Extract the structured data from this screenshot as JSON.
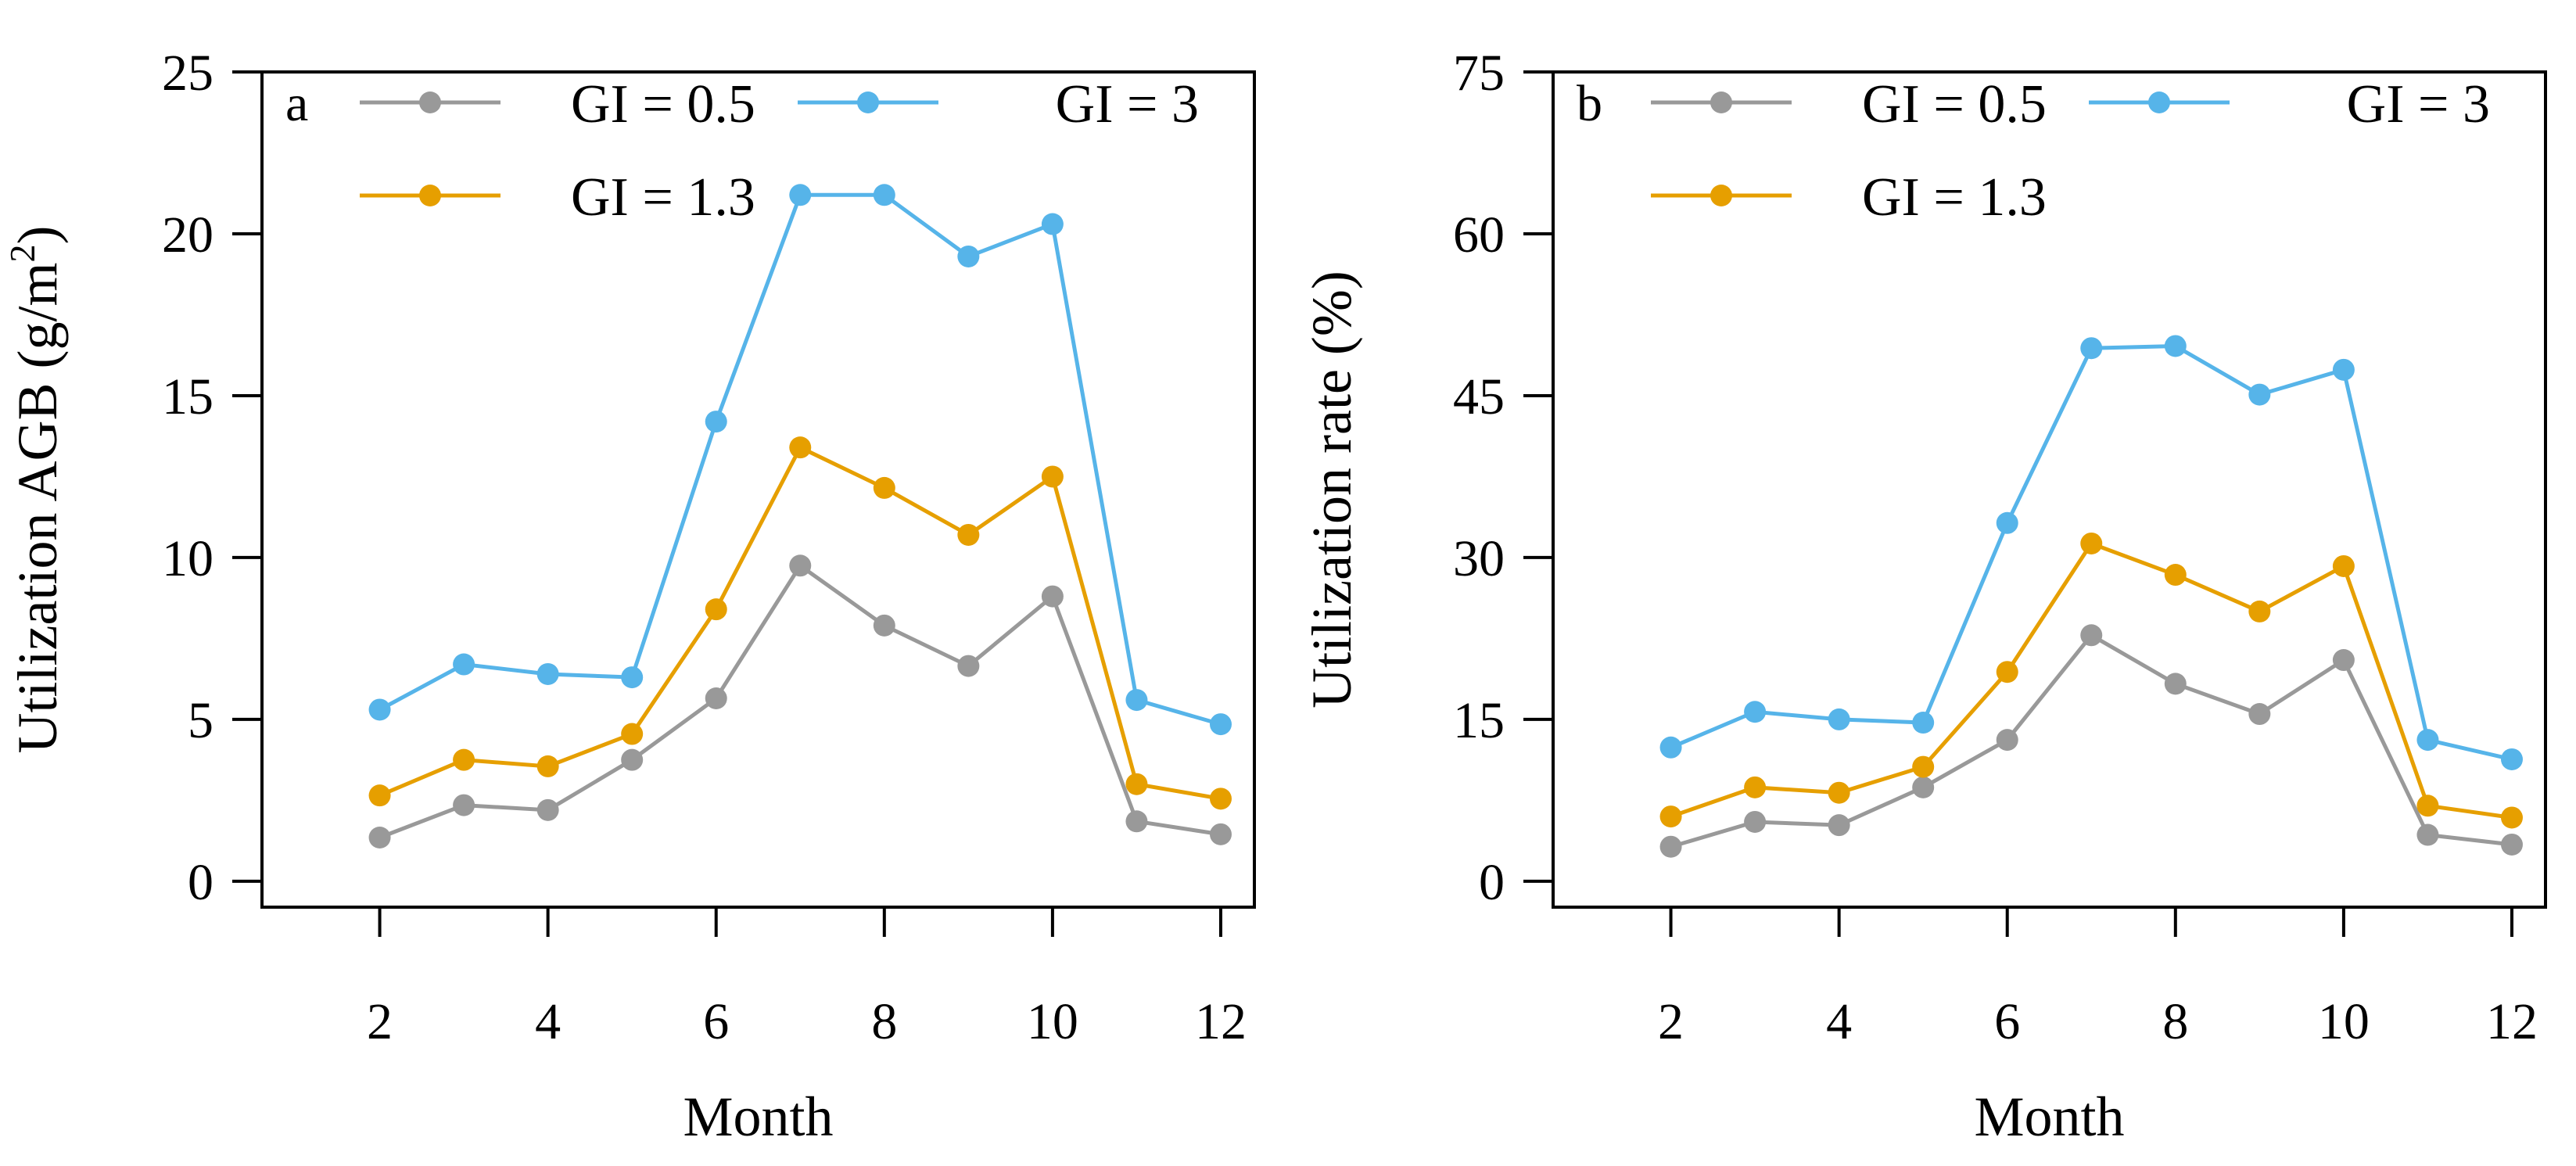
{
  "chart_data": [
    {
      "type": "line",
      "panel_label": "a",
      "xlabel": "Month",
      "ylabel_main": "Utilization AGB (g/m",
      "ylabel_sup": "2",
      "ylabel_close": ")",
      "x": [
        2,
        3,
        4,
        5,
        6,
        7,
        8,
        9,
        10,
        11,
        12
      ],
      "xlim": [
        0.6,
        12.4
      ],
      "ylim": [
        -0.8,
        25
      ],
      "xticks": [
        2,
        4,
        6,
        8,
        10,
        12
      ],
      "yticks": [
        0,
        5,
        10,
        15,
        20,
        25
      ],
      "grid": false,
      "legend_position": "top-left",
      "series": [
        {
          "name": "GI = 0.5",
          "color": "#999999",
          "values": [
            1.35,
            2.35,
            2.2,
            3.75,
            5.65,
            9.75,
            7.9,
            6.65,
            8.8,
            1.85,
            1.45
          ]
        },
        {
          "name": "GI = 1.3",
          "color": "#E69F00",
          "values": [
            2.65,
            3.75,
            3.55,
            4.55,
            8.4,
            13.4,
            12.15,
            10.7,
            12.5,
            3.0,
            2.55
          ]
        },
        {
          "name": "GI = 3",
          "color": "#56B4E9",
          "values": [
            5.3,
            6.7,
            6.4,
            6.3,
            14.2,
            21.2,
            21.2,
            19.3,
            20.3,
            5.6,
            4.85
          ]
        }
      ]
    },
    {
      "type": "line",
      "panel_label": "b",
      "xlabel": "Month",
      "ylabel_main": "Utilization rate (%)",
      "ylabel_sup": "",
      "ylabel_close": "",
      "x": [
        2,
        3,
        4,
        5,
        6,
        7,
        8,
        9,
        10,
        11,
        12
      ],
      "xlim": [
        0.6,
        12.4
      ],
      "ylim": [
        -2.4,
        75
      ],
      "xticks": [
        2,
        4,
        6,
        8,
        10,
        12
      ],
      "yticks": [
        0,
        15,
        30,
        45,
        60,
        75
      ],
      "grid": false,
      "legend_position": "top-left",
      "series": [
        {
          "name": "GI = 0.5",
          "color": "#999999",
          "values": [
            3.2,
            5.5,
            5.2,
            8.7,
            13.1,
            22.8,
            18.3,
            15.5,
            20.5,
            4.3,
            3.4
          ]
        },
        {
          "name": "GI = 1.3",
          "color": "#E69F00",
          "values": [
            6.0,
            8.7,
            8.2,
            10.6,
            19.4,
            31.3,
            28.4,
            25.0,
            29.2,
            7.0,
            5.9
          ]
        },
        {
          "name": "GI = 3",
          "color": "#56B4E9",
          "values": [
            12.4,
            15.7,
            15.0,
            14.7,
            33.2,
            49.4,
            49.6,
            45.1,
            47.4,
            13.1,
            11.3
          ]
        }
      ]
    }
  ]
}
